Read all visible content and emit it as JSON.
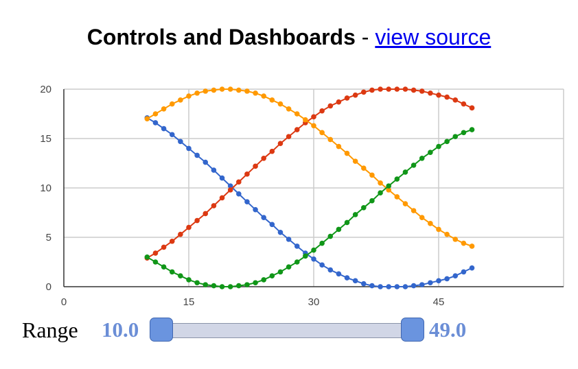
{
  "header": {
    "title": "Controls and Dashboards",
    "separator": " - ",
    "link_text": "view source"
  },
  "control": {
    "label": "Range",
    "low": "10.0",
    "high": "49.0",
    "min": 0,
    "max": 60,
    "low_value": 10,
    "high_value": 49
  },
  "chart_data": {
    "type": "line",
    "title": "",
    "xlabel": "",
    "ylabel": "",
    "xlim": [
      0,
      60
    ],
    "ylim": [
      0,
      20
    ],
    "xticks": [
      0,
      15,
      30,
      45
    ],
    "yticks": [
      0,
      5,
      10,
      15,
      20
    ],
    "grid": true,
    "x_start": 10,
    "x_end": 49,
    "x": [
      10,
      11,
      12,
      13,
      14,
      15,
      16,
      17,
      18,
      19,
      20,
      21,
      22,
      23,
      24,
      25,
      26,
      27,
      28,
      29,
      30,
      31,
      32,
      33,
      34,
      35,
      36,
      37,
      38,
      39,
      40,
      41,
      42,
      43,
      44,
      45,
      46,
      47,
      48,
      49
    ],
    "series": [
      {
        "color": "#3366cc",
        "values": [
          17.1,
          16.6,
          16.0,
          15.4,
          14.7,
          14.0,
          13.3,
          12.6,
          11.8,
          11.0,
          10.2,
          9.4,
          8.6,
          7.8,
          7.0,
          6.3,
          5.5,
          4.8,
          4.1,
          3.4,
          2.8,
          2.2,
          1.7,
          1.3,
          0.9,
          0.6,
          0.3,
          0.1,
          0.0,
          0.0,
          0.0,
          0.0,
          0.1,
          0.2,
          0.4,
          0.6,
          0.8,
          1.1,
          1.5,
          1.9
        ]
      },
      {
        "color": "#dc3912",
        "values": [
          2.9,
          3.4,
          4.0,
          4.6,
          5.3,
          6.0,
          6.7,
          7.4,
          8.2,
          9.0,
          9.8,
          10.6,
          11.4,
          12.2,
          13.0,
          13.7,
          14.5,
          15.2,
          15.9,
          16.6,
          17.2,
          17.8,
          18.3,
          18.7,
          19.1,
          19.4,
          19.7,
          19.9,
          20.0,
          20.0,
          20.0,
          20.0,
          19.9,
          19.8,
          19.6,
          19.4,
          19.2,
          18.9,
          18.5,
          18.1
        ]
      },
      {
        "color": "#ff9900",
        "values": [
          17.0,
          17.5,
          18.0,
          18.5,
          18.9,
          19.3,
          19.6,
          19.8,
          19.9,
          20.0,
          20.0,
          19.9,
          19.8,
          19.6,
          19.3,
          18.9,
          18.5,
          18.0,
          17.5,
          16.9,
          16.3,
          15.6,
          14.9,
          14.2,
          13.5,
          12.7,
          12.0,
          11.3,
          10.5,
          9.8,
          9.1,
          8.4,
          7.7,
          7.0,
          6.4,
          5.8,
          5.3,
          4.8,
          4.4,
          4.1
        ]
      },
      {
        "color": "#109618",
        "values": [
          3.0,
          2.5,
          2.0,
          1.5,
          1.1,
          0.7,
          0.4,
          0.2,
          0.1,
          0.0,
          0.0,
          0.1,
          0.2,
          0.4,
          0.7,
          1.1,
          1.5,
          2.0,
          2.5,
          3.1,
          3.7,
          4.4,
          5.1,
          5.8,
          6.5,
          7.3,
          8.0,
          8.7,
          9.5,
          10.2,
          10.9,
          11.6,
          12.3,
          13.0,
          13.6,
          14.2,
          14.7,
          15.2,
          15.6,
          15.9
        ]
      }
    ]
  }
}
